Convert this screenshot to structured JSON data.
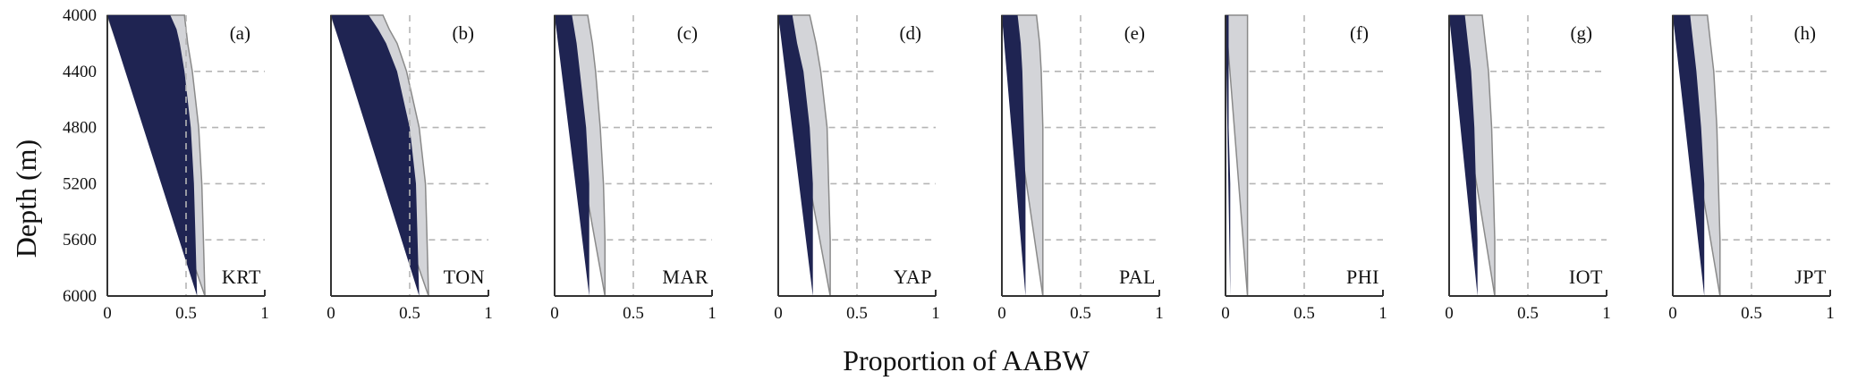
{
  "figure": {
    "ylabel": "Depth (m)",
    "xlabel": "Proportion of AABW"
  },
  "colors": {
    "lower_fill": "#1f2452",
    "upper_fill": "#d3d4d8",
    "upper_edge": "#8a8a8a",
    "grid": "#b5b5b5",
    "axis": "#333333"
  },
  "chart_data": [
    {
      "type": "area",
      "panel": "(a)",
      "station": "KRT",
      "xlim": [
        0,
        1
      ],
      "ylim": [
        4000,
        6000
      ],
      "y_inverted": true,
      "xticks": [
        "0",
        "0.5",
        "1"
      ],
      "yticks": [
        "4000",
        "4400",
        "4800",
        "5200",
        "5600",
        "6000"
      ],
      "grid": true,
      "depth": [
        4000,
        4100,
        4200,
        4400,
        4800,
        5200,
        5600,
        6000
      ],
      "series": [
        {
          "values": [
            0.4,
            0.44,
            0.46,
            0.49,
            0.53,
            0.55,
            0.56,
            0.57
          ]
        },
        {
          "values": [
            0.49,
            0.5,
            0.51,
            0.54,
            0.58,
            0.6,
            0.61,
            0.62
          ]
        }
      ]
    },
    {
      "type": "area",
      "panel": "(b)",
      "station": "TON",
      "xlim": [
        0,
        1
      ],
      "ylim": [
        4000,
        6000
      ],
      "y_inverted": true,
      "xticks": [
        "0",
        "0.5",
        "1"
      ],
      "yticks": [
        "4000",
        "4400",
        "4800",
        "5200",
        "5600",
        "6000"
      ],
      "grid": true,
      "depth": [
        4000,
        4100,
        4200,
        4400,
        4800,
        5200,
        5600,
        6000
      ],
      "series": [
        {
          "values": [
            0.24,
            0.3,
            0.35,
            0.42,
            0.5,
            0.54,
            0.55,
            0.56
          ]
        },
        {
          "values": [
            0.33,
            0.37,
            0.42,
            0.48,
            0.56,
            0.6,
            0.61,
            0.62
          ]
        }
      ]
    },
    {
      "type": "area",
      "panel": "(c)",
      "station": "MAR",
      "xlim": [
        0,
        1
      ],
      "ylim": [
        4000,
        6000
      ],
      "y_inverted": true,
      "xticks": [
        "0",
        "0.5",
        "1"
      ],
      "yticks": [
        "4000",
        "4400",
        "4800",
        "5200",
        "5600",
        "6000"
      ],
      "grid": true,
      "depth": [
        4000,
        4200,
        4400,
        4800,
        5200,
        5600,
        6000
      ],
      "series": [
        {
          "values": [
            0.11,
            0.14,
            0.16,
            0.2,
            0.22,
            0.22,
            0.22
          ]
        },
        {
          "values": [
            0.21,
            0.24,
            0.26,
            0.29,
            0.31,
            0.32,
            0.32
          ]
        }
      ]
    },
    {
      "type": "area",
      "panel": "(d)",
      "station": "YAP",
      "xlim": [
        0,
        1
      ],
      "ylim": [
        4000,
        6000
      ],
      "y_inverted": true,
      "xticks": [
        "0",
        "0.5",
        "1"
      ],
      "yticks": [
        "4000",
        "4400",
        "4800",
        "5200",
        "5600",
        "6000"
      ],
      "grid": true,
      "depth": [
        4000,
        4200,
        4400,
        4800,
        5200,
        5600,
        6000
      ],
      "series": [
        {
          "values": [
            0.09,
            0.12,
            0.16,
            0.2,
            0.22,
            0.22,
            0.22
          ]
        },
        {
          "values": [
            0.2,
            0.24,
            0.27,
            0.31,
            0.32,
            0.33,
            0.33
          ]
        }
      ]
    },
    {
      "type": "area",
      "panel": "(e)",
      "station": "PAL",
      "xlim": [
        0,
        1
      ],
      "ylim": [
        4000,
        6000
      ],
      "y_inverted": true,
      "xticks": [
        "0",
        "0.5",
        "1"
      ],
      "yticks": [
        "4000",
        "4400",
        "4800",
        "5200",
        "5600",
        "6000"
      ],
      "grid": true,
      "depth": [
        4000,
        4200,
        4400,
        4800,
        5200,
        5600,
        6000
      ],
      "series": [
        {
          "values": [
            0.1,
            0.12,
            0.13,
            0.14,
            0.15,
            0.15,
            0.15
          ]
        },
        {
          "values": [
            0.22,
            0.24,
            0.25,
            0.26,
            0.26,
            0.26,
            0.26
          ]
        }
      ]
    },
    {
      "type": "area",
      "panel": "(f)",
      "station": "PHI",
      "xlim": [
        0,
        1
      ],
      "ylim": [
        4000,
        6000
      ],
      "y_inverted": true,
      "xticks": [
        "0",
        "0.5",
        "1"
      ],
      "yticks": [
        "4000",
        "4400",
        "4800",
        "5200",
        "5600",
        "6000"
      ],
      "grid": true,
      "depth": [
        4000,
        4400,
        4800,
        5200,
        5600,
        6000
      ],
      "series": [
        {
          "values": [
            0.02,
            0.02,
            0.02,
            0.03,
            0.03,
            0.03
          ]
        },
        {
          "values": [
            0.14,
            0.14,
            0.14,
            0.14,
            0.14,
            0.14
          ]
        }
      ]
    },
    {
      "type": "area",
      "panel": "(g)",
      "station": "IOT",
      "xlim": [
        0,
        1
      ],
      "ylim": [
        4000,
        6000
      ],
      "y_inverted": true,
      "xticks": [
        "0",
        "0.5",
        "1"
      ],
      "yticks": [
        "4000",
        "4400",
        "4800",
        "5200",
        "5600",
        "6000"
      ],
      "grid": true,
      "depth": [
        4000,
        4200,
        4400,
        4800,
        5200,
        5600,
        6000
      ],
      "series": [
        {
          "values": [
            0.1,
            0.12,
            0.14,
            0.16,
            0.17,
            0.18,
            0.18
          ]
        },
        {
          "values": [
            0.21,
            0.23,
            0.25,
            0.27,
            0.28,
            0.29,
            0.29
          ]
        }
      ]
    },
    {
      "type": "area",
      "panel": "(h)",
      "station": "JPT",
      "xlim": [
        0,
        1
      ],
      "ylim": [
        4000,
        6000
      ],
      "y_inverted": true,
      "xticks": [
        "0",
        "0.5",
        "1"
      ],
      "yticks": [
        "4000",
        "4400",
        "4800",
        "5200",
        "5600",
        "6000"
      ],
      "grid": true,
      "depth": [
        4000,
        4200,
        4400,
        4800,
        5200,
        5600,
        6000
      ],
      "series": [
        {
          "values": [
            0.11,
            0.13,
            0.15,
            0.18,
            0.2,
            0.2,
            0.2
          ]
        },
        {
          "values": [
            0.22,
            0.24,
            0.26,
            0.28,
            0.29,
            0.3,
            0.3
          ]
        }
      ]
    }
  ]
}
